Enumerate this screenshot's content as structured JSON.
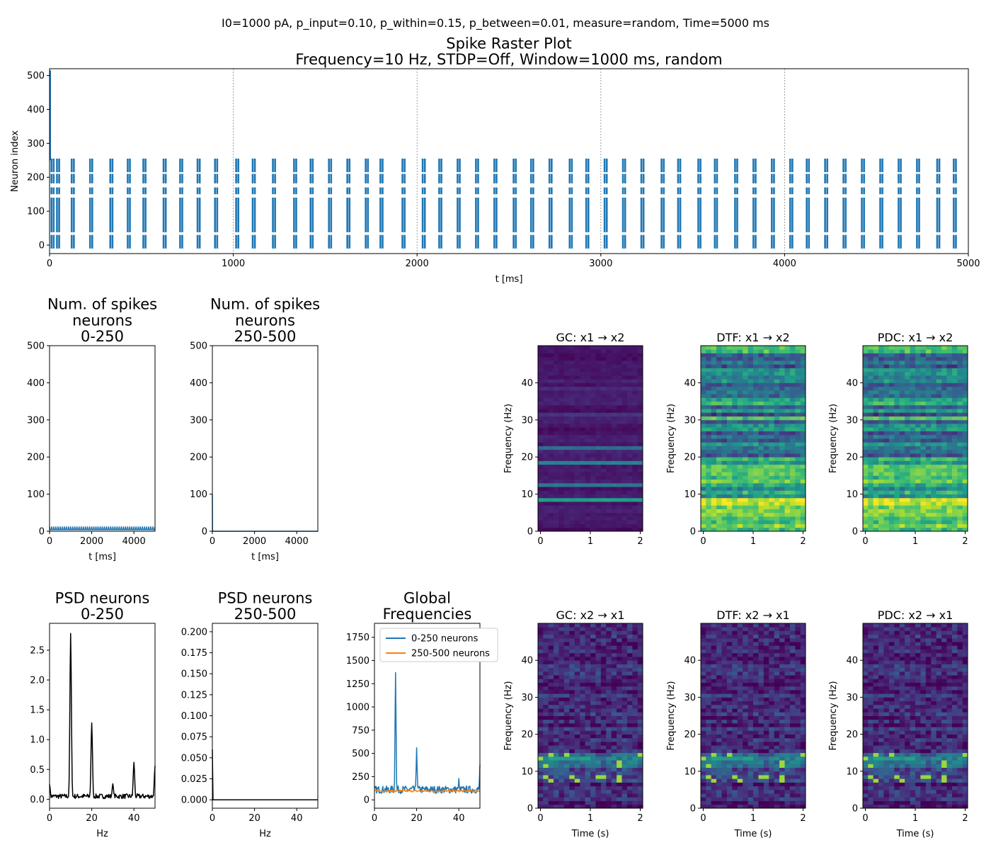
{
  "figure": {
    "suptitle": "I0=1000 pA, p_input=0.10, p_within=0.15, p_between=0.01, measure=random, Time=5000 ms"
  },
  "colors": {
    "spike": "#1f77b4",
    "series2": "#ff7f0e",
    "psd": "#000000",
    "dashed": "#888888"
  },
  "chart_data": [
    {
      "id": "raster",
      "type": "scatter",
      "title": "Spike Raster Plot\nFrequency=10 Hz, STDP=Off, Window=1000 ms, random",
      "xlabel": "t [ms]",
      "ylabel": "Neuron index",
      "xlim": [
        0,
        5000
      ],
      "ylim": [
        -25,
        520
      ],
      "xticks": [
        0,
        1000,
        2000,
        3000,
        4000,
        5000
      ],
      "yticks": [
        0,
        100,
        200,
        300,
        400,
        500
      ],
      "window_lines": [
        1000,
        2000,
        3000,
        4000
      ],
      "neuron_bands": [
        [
          -10,
          30
        ],
        [
          38,
          140
        ],
        [
          150,
          170
        ],
        [
          182,
          210
        ],
        [
          215,
          255
        ]
      ],
      "spike_times": [
        10,
        40,
        120,
        220,
        330,
        425,
        510,
        620,
        710,
        805,
        900,
        1015,
        1105,
        1215,
        1330,
        1420,
        1520,
        1620,
        1720,
        1800,
        1920,
        2030,
        2120,
        2220,
        2320,
        2420,
        2525,
        2620,
        2720,
        2830,
        2920,
        3020,
        3120,
        3220,
        3330,
        3420,
        3530,
        3620,
        3730,
        3830,
        3930,
        4030,
        4120,
        4220,
        4320,
        4420,
        4520,
        4620,
        4720,
        4830,
        4920
      ]
    },
    {
      "id": "spikes_a",
      "type": "line",
      "title": "Num. of spikes\nneurons\n0-250",
      "xlabel": "t [ms]",
      "ylabel": "",
      "xlim": [
        0,
        5000
      ],
      "ylim": [
        0,
        500
      ],
      "xticks": [
        0,
        2000,
        4000
      ],
      "yticks": [
        0,
        100,
        200,
        300,
        400,
        500
      ],
      "baseline": 4,
      "peak": 12,
      "period_ms": 100
    },
    {
      "id": "spikes_b",
      "type": "line",
      "title": "Num. of spikes\nneurons\n250-500",
      "xlabel": "t [ms]",
      "ylabel": "",
      "xlim": [
        0,
        5000
      ],
      "ylim": [
        0,
        500
      ],
      "xticks": [
        0,
        2000,
        4000
      ],
      "yticks": [
        0,
        100,
        200,
        300,
        400,
        500
      ],
      "initial_peak": 100,
      "baseline": 0
    },
    {
      "id": "psd_a",
      "type": "line",
      "title": "PSD neurons\n0-250",
      "xlabel": "Hz",
      "ylabel": "",
      "xlim": [
        0,
        50
      ],
      "ylim": [
        -0.15,
        2.95
      ],
      "xticks": [
        0,
        20,
        40
      ],
      "yticks": [
        0.0,
        0.5,
        1.0,
        1.5,
        2.0,
        2.5
      ],
      "ytick_labels": [
        "0.0",
        "0.5",
        "1.0",
        "1.5",
        "2.0",
        "2.5"
      ],
      "baseline": 0.05,
      "peaks": [
        [
          0,
          0.25
        ],
        [
          10,
          2.78
        ],
        [
          20,
          1.28
        ],
        [
          30,
          0.26
        ],
        [
          40,
          0.62
        ],
        [
          50,
          0.56
        ]
      ]
    },
    {
      "id": "psd_b",
      "type": "line",
      "title": "PSD neurons\n250-500",
      "xlabel": "Hz",
      "ylabel": "",
      "xlim": [
        0,
        50
      ],
      "ylim": [
        -0.01,
        0.21
      ],
      "xticks": [
        0,
        20,
        40
      ],
      "yticks": [
        0.0,
        0.025,
        0.05,
        0.075,
        0.1,
        0.125,
        0.15,
        0.175,
        0.2
      ],
      "ytick_labels": [
        "0.000",
        "0.025",
        "0.050",
        "0.075",
        "0.100",
        "0.125",
        "0.150",
        "0.175",
        "0.200"
      ],
      "initial_value": 0.06,
      "baseline": 0.0
    },
    {
      "id": "global",
      "type": "line",
      "title": "Global\nFrequencies",
      "xlabel": "",
      "ylabel": "",
      "xlim": [
        0,
        50
      ],
      "ylim": [
        -90,
        1900
      ],
      "xticks": [
        0,
        20,
        40
      ],
      "yticks": [
        0,
        250,
        500,
        750,
        1000,
        1250,
        1500,
        1750
      ],
      "series": [
        {
          "name": "0-250 neurons",
          "baseline": 110,
          "peaks": [
            [
              10,
              1370
            ],
            [
              20,
              560
            ],
            [
              30,
              130
            ],
            [
              40,
              230
            ],
            [
              50,
              380
            ]
          ]
        },
        {
          "name": "250-500 neurons",
          "baseline": 95,
          "peaks": []
        }
      ]
    },
    {
      "id": "gc12",
      "type": "heatmap",
      "title": "GC: x1 → x2",
      "xlabel": "",
      "ylabel": "Frequency (Hz)",
      "xlim": [
        -0.05,
        2.05
      ],
      "ylim": [
        0,
        50
      ],
      "xticks": [
        0,
        1,
        2
      ],
      "yticks": [
        0,
        10,
        20,
        30,
        40
      ],
      "pattern": "gc"
    },
    {
      "id": "dtf12",
      "type": "heatmap",
      "title": "DTF: x1 → x2",
      "xlabel": "",
      "ylabel": "Frequency (Hz)",
      "xlim": [
        -0.05,
        2.05
      ],
      "ylim": [
        0,
        50
      ],
      "xticks": [
        0,
        1,
        2
      ],
      "yticks": [
        0,
        10,
        20,
        30,
        40
      ],
      "pattern": "dtf"
    },
    {
      "id": "pdc12",
      "type": "heatmap",
      "title": "PDC: x1 → x2",
      "xlabel": "",
      "ylabel": "Frequency (Hz)",
      "xlim": [
        -0.05,
        2.05
      ],
      "ylim": [
        0,
        50
      ],
      "xticks": [
        0,
        1,
        2
      ],
      "yticks": [
        0,
        10,
        20,
        30,
        40
      ],
      "pattern": "dtf"
    },
    {
      "id": "gc21",
      "type": "heatmap",
      "title": "GC: x2 → x1",
      "xlabel": "Time (s)",
      "ylabel": "Frequency (Hz)",
      "xlim": [
        -0.05,
        2.05
      ],
      "ylim": [
        0,
        50
      ],
      "xticks": [
        0,
        1,
        2
      ],
      "yticks": [
        0,
        10,
        20,
        30,
        40
      ],
      "pattern": "rev"
    },
    {
      "id": "dtf21",
      "type": "heatmap",
      "title": "DTF: x2 → x1",
      "xlabel": "Time (s)",
      "ylabel": "Frequency (Hz)",
      "xlim": [
        -0.05,
        2.05
      ],
      "ylim": [
        0,
        50
      ],
      "xticks": [
        0,
        1,
        2
      ],
      "yticks": [
        0,
        10,
        20,
        30,
        40
      ],
      "pattern": "rev"
    },
    {
      "id": "pdc21",
      "type": "heatmap",
      "title": "PDC: x2 → x1",
      "xlabel": "Time (s)",
      "ylabel": "Frequency (Hz)",
      "xlim": [
        -0.05,
        2.05
      ],
      "ylim": [
        0,
        50
      ],
      "xticks": [
        0,
        1,
        2
      ],
      "yticks": [
        0,
        10,
        20,
        30,
        40
      ],
      "pattern": "rev"
    }
  ]
}
